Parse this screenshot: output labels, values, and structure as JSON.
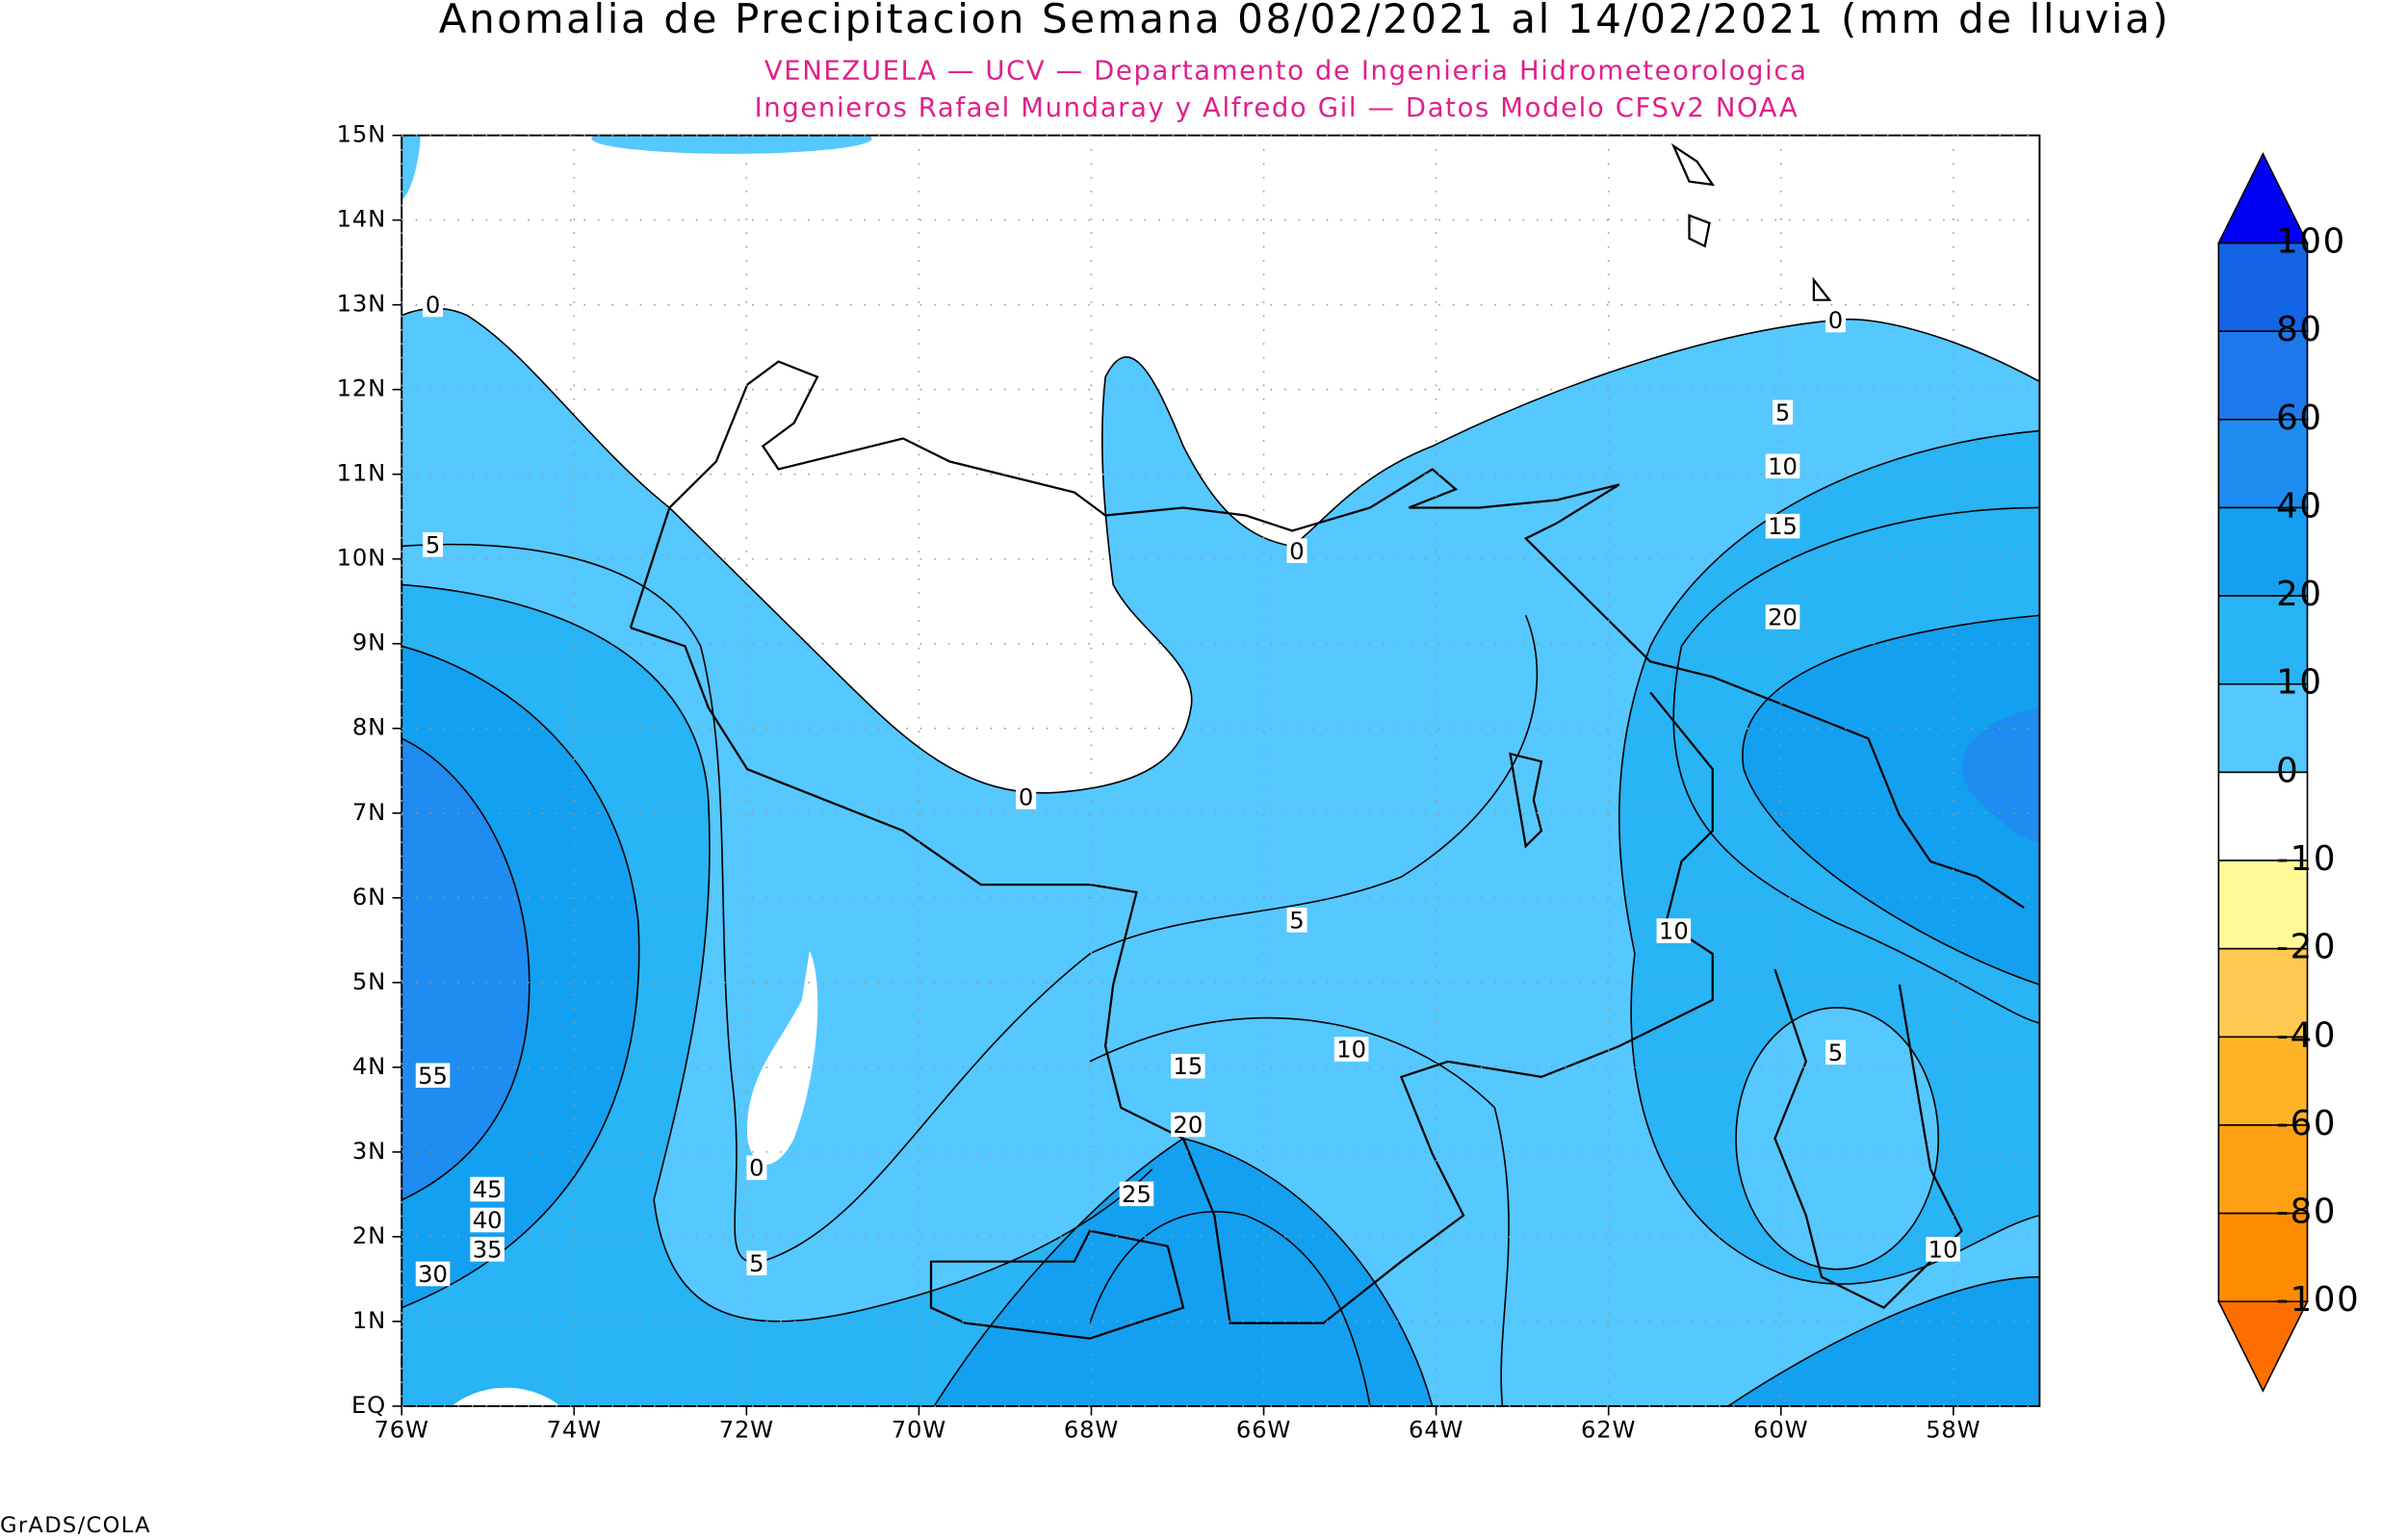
{
  "title": "Anomalia de Precipitacion Semana 08/02/2021 al 14/02/2021 (mm de lluvia)",
  "subtitle_lines": [
    "VENEZUELA — UCV — Departamento de Ingenieria Hidrometeorologica",
    "Ingenieros Rafael Mundaray y Alfredo Gil — Datos Modelo CFSv2 NOAA"
  ],
  "map": {
    "xlim": [
      -76,
      -57
    ],
    "ylim": [
      0,
      15
    ],
    "xticks": [
      {
        "value": -76,
        "label": "76W"
      },
      {
        "value": -74,
        "label": "74W"
      },
      {
        "value": -72,
        "label": "72W"
      },
      {
        "value": -70,
        "label": "70W"
      },
      {
        "value": -68,
        "label": "68W"
      },
      {
        "value": -66,
        "label": "66W"
      },
      {
        "value": -64,
        "label": "64W"
      },
      {
        "value": -62,
        "label": "62W"
      },
      {
        "value": -60,
        "label": "60W"
      },
      {
        "value": -58,
        "label": "58W"
      }
    ],
    "yticks": [
      {
        "value": 0,
        "label": "EQ"
      },
      {
        "value": 1,
        "label": "1N"
      },
      {
        "value": 2,
        "label": "2N"
      },
      {
        "value": 3,
        "label": "3N"
      },
      {
        "value": 4,
        "label": "4N"
      },
      {
        "value": 5,
        "label": "5N"
      },
      {
        "value": 6,
        "label": "6N"
      },
      {
        "value": 7,
        "label": "7N"
      },
      {
        "value": 8,
        "label": "8N"
      },
      {
        "value": 9,
        "label": "9N"
      },
      {
        "value": 10,
        "label": "10N"
      },
      {
        "value": 11,
        "label": "11N"
      },
      {
        "value": 12,
        "label": "12N"
      },
      {
        "value": 13,
        "label": "13N"
      },
      {
        "value": 14,
        "label": "14N"
      },
      {
        "value": 15,
        "label": "15N"
      }
    ],
    "grid": true,
    "contour_labels": [
      0,
      0,
      5,
      10,
      15,
      20,
      5,
      0,
      0,
      5,
      10,
      10,
      5,
      15,
      55,
      20,
      0,
      45,
      25,
      40,
      35,
      5,
      10,
      30
    ]
  },
  "colorbar": {
    "levels": [
      100,
      80,
      60,
      40,
      20,
      10,
      0,
      -10,
      -20,
      -40,
      -60,
      -80,
      -100
    ],
    "colors": [
      "#0000f5",
      "#1464e6",
      "#1e78eb",
      "#1e8cf0",
      "#14a0f0",
      "#28b4f5",
      "#55c8ff",
      "#ffffff",
      "#fffa96",
      "#ffc850",
      "#ffb428",
      "#ffa014",
      "#ff8c00",
      "#ff6e00"
    ]
  },
  "footer": "GrADS/COLA"
}
